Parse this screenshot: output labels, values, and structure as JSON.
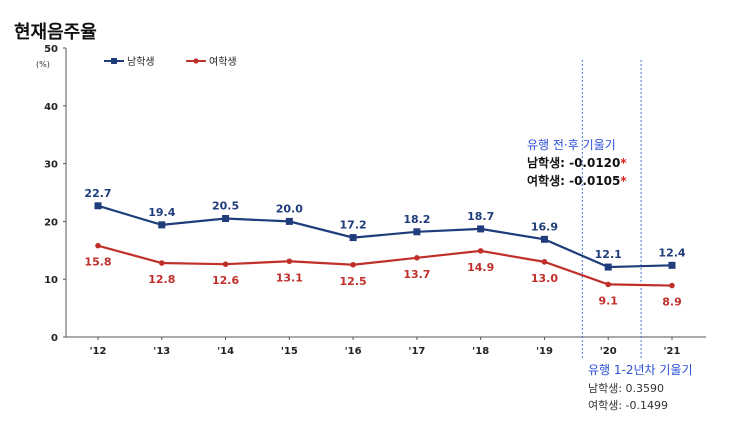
{
  "chart_data": {
    "type": "line",
    "title": "현재음주율",
    "yunit": "(%)",
    "ylim": [
      0,
      50
    ],
    "yticks": [
      0,
      10,
      20,
      30,
      40,
      50
    ],
    "categories": [
      "'12",
      "'13",
      "'14",
      "'15",
      "'16",
      "'17",
      "'18",
      "'19",
      "'20",
      "'21"
    ],
    "series": [
      {
        "name": "남학생",
        "color": "#1f3d7a",
        "marker": "square",
        "label_color": "#1f3d7a",
        "values": [
          22.7,
          19.4,
          20.5,
          20.0,
          17.2,
          18.2,
          18.7,
          16.9,
          12.1,
          12.4
        ]
      },
      {
        "name": "여학생",
        "color": "#c0302b",
        "marker": "diamond",
        "label_color": "#c0302b",
        "values": [
          15.8,
          12.8,
          12.6,
          13.1,
          12.5,
          13.7,
          14.9,
          13.0,
          9.1,
          8.9
        ]
      }
    ],
    "legend": "top-left",
    "grid": false,
    "annotations": {
      "pre_post": {
        "title": "유행 전·후 기울기",
        "boys_label": "남학생: -0.0120",
        "girls_label": "여학생: -0.0105",
        "star": "*"
      },
      "yr12": {
        "title": "유행 1-2년차 기울기",
        "boys_label": "남학생: 0.3590",
        "girls_label": "여학생: -0.1499"
      }
    }
  }
}
